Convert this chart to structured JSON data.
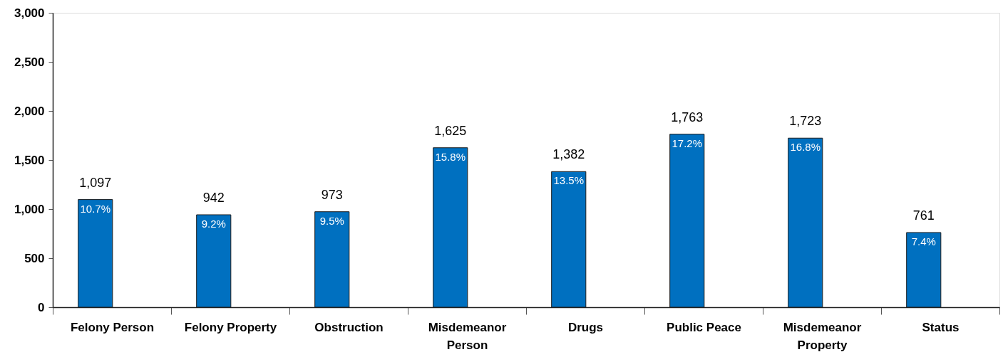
{
  "chart_data": {
    "type": "bar",
    "categories": [
      "Felony Person",
      "Felony Property",
      "Obstruction",
      "Misdemeanor Person",
      "Drugs",
      "Public Peace",
      "Misdemeanor Property",
      "Status"
    ],
    "values": [
      1097,
      942,
      973,
      1625,
      1382,
      1763,
      1723,
      761
    ],
    "value_labels": [
      "1,097",
      "942",
      "973",
      "1,625",
      "1,382",
      "1,763",
      "1,723",
      "761"
    ],
    "color": "#0070c0",
    "ylim": [
      0,
      3000
    ],
    "yticks": [
      {
        "value": 0,
        "label": "0"
      },
      {
        "value": 500,
        "label": "500"
      },
      {
        "value": 1000,
        "label": "1,000"
      },
      {
        "value": 1500,
        "label": "1,500"
      },
      {
        "value": 2000,
        "label": "2,000"
      },
      {
        "value": 2500,
        "label": "2,500"
      },
      {
        "value": 3000,
        "label": "3,000"
      }
    ],
    "annotations": [
      {
        "text": "10.7%",
        "x": "Felony Person",
        "y": 1097
      },
      {
        "text": "9.2%",
        "x": "Felony Property",
        "y": 942
      },
      {
        "text": "9.5%",
        "x": "Obstruction",
        "y": 973
      },
      {
        "text": "15.8%",
        "x": "Misdemeanor Person",
        "y": 1625
      },
      {
        "text": "13.5%",
        "x": "Drugs",
        "y": 1382
      },
      {
        "text": "17.2%",
        "x": "Public Peace",
        "y": 1763
      },
      {
        "text": "16.8%",
        "x": "Misdemeanor Property",
        "y": 1723
      },
      {
        "text": "7.4%",
        "x": "Status",
        "y": 761
      }
    ],
    "grid": false
  }
}
